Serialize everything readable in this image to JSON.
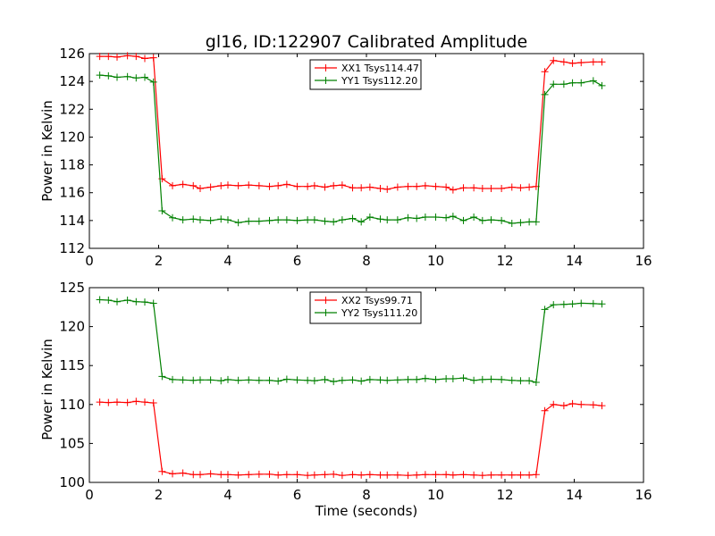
{
  "chart_data": [
    {
      "type": "line",
      "title": "gl16, ID:122907 Calibrated Amplitude",
      "xlabel": "",
      "ylabel": "Power in Kelvin",
      "xlim": [
        0,
        16
      ],
      "ylim": [
        112,
        126
      ],
      "xticks": [
        "0",
        "2",
        "4",
        "6",
        "8",
        "10",
        "12",
        "14",
        "16"
      ],
      "yticks": [
        "112",
        "114",
        "116",
        "118",
        "120",
        "122",
        "124",
        "126"
      ],
      "grid": false,
      "legend_position": "top-center",
      "x": [
        0.3,
        0.55,
        0.8,
        1.1,
        1.35,
        1.6,
        1.85,
        2.1,
        2.4,
        2.7,
        3.0,
        3.2,
        3.5,
        3.8,
        4.0,
        4.3,
        4.6,
        4.9,
        5.2,
        5.45,
        5.7,
        6.0,
        6.3,
        6.5,
        6.8,
        7.05,
        7.3,
        7.6,
        7.85,
        8.1,
        8.4,
        8.6,
        8.9,
        9.2,
        9.45,
        9.7,
        10.0,
        10.3,
        10.5,
        10.8,
        11.1,
        11.35,
        11.6,
        11.9,
        12.2,
        12.45,
        12.7,
        12.9,
        13.15,
        13.4,
        13.7,
        13.95,
        14.2,
        14.55,
        14.8
      ],
      "series": [
        {
          "name": "XX1 Tsys114.47",
          "color": "#ff0000",
          "values": [
            125.8,
            125.8,
            125.75,
            125.85,
            125.8,
            125.65,
            125.7,
            117.0,
            116.5,
            116.6,
            116.5,
            116.3,
            116.4,
            116.5,
            116.55,
            116.5,
            116.55,
            116.5,
            116.45,
            116.5,
            116.6,
            116.45,
            116.45,
            116.5,
            116.4,
            116.5,
            116.55,
            116.35,
            116.35,
            116.4,
            116.3,
            116.25,
            116.4,
            116.45,
            116.45,
            116.5,
            116.45,
            116.4,
            116.2,
            116.35,
            116.35,
            116.3,
            116.3,
            116.3,
            116.4,
            116.35,
            116.4,
            116.45,
            124.7,
            125.5,
            125.4,
            125.3,
            125.35,
            125.4,
            125.4
          ]
        },
        {
          "name": "YY1 Tsys112.20",
          "color": "#008000",
          "values": [
            124.45,
            124.4,
            124.3,
            124.35,
            124.25,
            124.3,
            123.95,
            114.7,
            114.2,
            114.05,
            114.1,
            114.05,
            114.0,
            114.1,
            114.05,
            113.85,
            113.95,
            113.95,
            114.0,
            114.05,
            114.05,
            114.0,
            114.05,
            114.05,
            113.95,
            113.9,
            114.05,
            114.15,
            113.9,
            114.25,
            114.1,
            114.05,
            114.05,
            114.2,
            114.15,
            114.25,
            114.25,
            114.2,
            114.3,
            114.0,
            114.25,
            114.0,
            114.05,
            114.0,
            113.8,
            113.85,
            113.9,
            113.9,
            123.05,
            123.8,
            123.8,
            123.9,
            123.9,
            124.05,
            123.7
          ]
        }
      ]
    },
    {
      "type": "line",
      "title": "",
      "xlabel": "Time (seconds)",
      "ylabel": "Power in Kelvin",
      "xlim": [
        0,
        16
      ],
      "ylim": [
        100,
        125
      ],
      "xticks": [
        "0",
        "2",
        "4",
        "6",
        "8",
        "10",
        "12",
        "14",
        "16"
      ],
      "yticks": [
        "100",
        "105",
        "110",
        "115",
        "120",
        "125"
      ],
      "grid": false,
      "legend_position": "top-center",
      "x": [
        0.3,
        0.55,
        0.8,
        1.1,
        1.35,
        1.6,
        1.85,
        2.1,
        2.4,
        2.7,
        3.0,
        3.2,
        3.5,
        3.8,
        4.0,
        4.3,
        4.6,
        4.9,
        5.2,
        5.45,
        5.7,
        6.0,
        6.3,
        6.5,
        6.8,
        7.05,
        7.3,
        7.6,
        7.85,
        8.1,
        8.4,
        8.6,
        8.9,
        9.2,
        9.45,
        9.7,
        10.0,
        10.3,
        10.5,
        10.8,
        11.1,
        11.35,
        11.6,
        11.9,
        12.2,
        12.45,
        12.7,
        12.9,
        13.15,
        13.4,
        13.7,
        13.95,
        14.2,
        14.55,
        14.8
      ],
      "series": [
        {
          "name": "XX2 Tsys99.71",
          "color": "#ff0000",
          "values": [
            110.3,
            110.25,
            110.3,
            110.25,
            110.4,
            110.3,
            110.2,
            101.4,
            101.1,
            101.2,
            101.0,
            101.0,
            101.1,
            101.0,
            101.0,
            100.95,
            101.0,
            101.05,
            101.05,
            100.95,
            101.0,
            101.0,
            100.9,
            100.95,
            101.0,
            101.05,
            100.9,
            101.0,
            100.95,
            101.0,
            100.95,
            100.95,
            100.95,
            100.9,
            100.95,
            101.0,
            101.0,
            101.0,
            100.95,
            101.0,
            100.95,
            100.9,
            100.95,
            100.95,
            100.95,
            100.95,
            100.95,
            101.0,
            109.2,
            110.0,
            109.85,
            110.1,
            110.0,
            109.95,
            109.85
          ]
        },
        {
          "name": "YY2 Tsys111.20",
          "color": "#008000",
          "values": [
            123.45,
            123.4,
            123.2,
            123.4,
            123.2,
            123.15,
            123.0,
            113.6,
            113.2,
            113.15,
            113.1,
            113.15,
            113.15,
            113.05,
            113.2,
            113.1,
            113.15,
            113.1,
            113.1,
            113.0,
            113.25,
            113.15,
            113.1,
            113.05,
            113.2,
            112.95,
            113.1,
            113.15,
            113.0,
            113.2,
            113.15,
            113.1,
            113.15,
            113.2,
            113.2,
            113.35,
            113.2,
            113.3,
            113.3,
            113.4,
            113.1,
            113.2,
            113.25,
            113.2,
            113.1,
            113.05,
            113.05,
            112.85,
            122.2,
            122.8,
            122.85,
            122.9,
            123.0,
            122.95,
            122.9
          ]
        }
      ]
    }
  ]
}
